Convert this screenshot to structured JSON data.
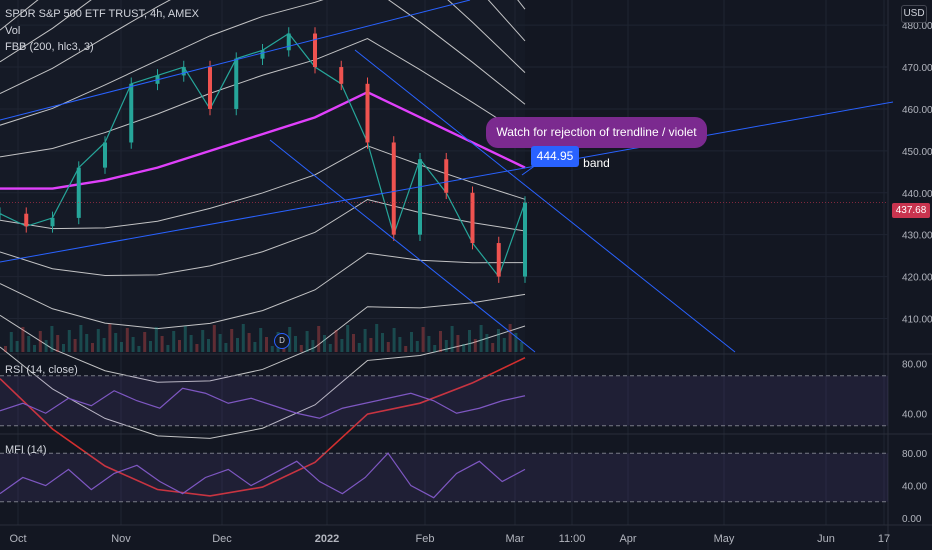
{
  "header": {
    "symbol_line": "SPDR S&P 500 ETF TRUST, 4h, AMEX",
    "vol_label": "Vol",
    "fbb_label": "FBB (200, hlc3, 3)",
    "currency": "USD"
  },
  "annotations": {
    "callout_text": "Watch for rejection of trendline / violet band",
    "price_label": "444.95",
    "last_price": "437.68",
    "d_marker": "D"
  },
  "colors": {
    "background": "#131722",
    "candle_up": "#26a69a",
    "candle_down": "#ef5350",
    "band_outer_top": "#d32f2f",
    "band_mid": "#e040fb",
    "band_outer_bottom": "#2e7d32",
    "band_inner": "#e0e0e0",
    "trendline": "#2962ff",
    "oscillator": "#7e57c2",
    "callout": "#7b2a8f",
    "price_label": "#2962ff",
    "last_price": "#c9344f"
  },
  "chart_data": [
    {
      "type": "line",
      "panel": "price",
      "ylim": [
        402,
        486
      ],
      "y_ticks": [
        480,
        470,
        460,
        450,
        440,
        430,
        420,
        410
      ],
      "x_ticks": [
        "Oct",
        "Nov",
        "Dec",
        "2022",
        "Feb",
        "Mar",
        "11:00",
        "Apr",
        "May",
        "Jun",
        "17"
      ],
      "series": [
        {
          "role": "price",
          "x": [
            0,
            0.05,
            0.1,
            0.15,
            0.2,
            0.25,
            0.3,
            0.35,
            0.4,
            0.45,
            0.5,
            0.55,
            0.6,
            0.65,
            0.7,
            0.75,
            0.8,
            0.85,
            0.9,
            0.95,
            1.0
          ],
          "values": [
            435,
            432,
            434,
            446,
            452,
            466,
            468,
            470,
            460,
            472,
            474,
            478,
            470,
            466,
            452,
            430,
            448,
            440,
            428,
            420,
            437.68
          ]
        },
        {
          "role": "fbb-basis",
          "x": [
            0,
            0.1,
            0.2,
            0.3,
            0.4,
            0.5,
            0.6,
            0.7,
            0.8,
            0.9,
            1.0
          ],
          "values": [
            441,
            441,
            443,
            446,
            450,
            454,
            458,
            464,
            458,
            452,
            446
          ]
        }
      ],
      "fbb": {
        "length": 200,
        "source": "hlc3",
        "multiplier": 3,
        "band_count": 13
      }
    },
    {
      "type": "line",
      "panel": "rsi",
      "title": "RSI (14, close)",
      "ylim": [
        25,
        85
      ],
      "y_ticks": [
        80,
        40
      ],
      "bands": [
        70,
        30
      ],
      "values": [
        42,
        48,
        40,
        52,
        46,
        58,
        50,
        44,
        60,
        56,
        48,
        52,
        46,
        40,
        36,
        44,
        48,
        52,
        56,
        50,
        40,
        44,
        50,
        54
      ]
    },
    {
      "type": "line",
      "panel": "mfi",
      "title": "MFI (14)",
      "ylim": [
        -5,
        100
      ],
      "y_ticks": [
        80,
        40,
        0
      ],
      "bands": [
        80,
        20
      ],
      "values": [
        30,
        50,
        40,
        60,
        35,
        55,
        65,
        45,
        30,
        50,
        60,
        40,
        55,
        70,
        45,
        30,
        50,
        80,
        40,
        25,
        55,
        70,
        45,
        60
      ]
    }
  ]
}
